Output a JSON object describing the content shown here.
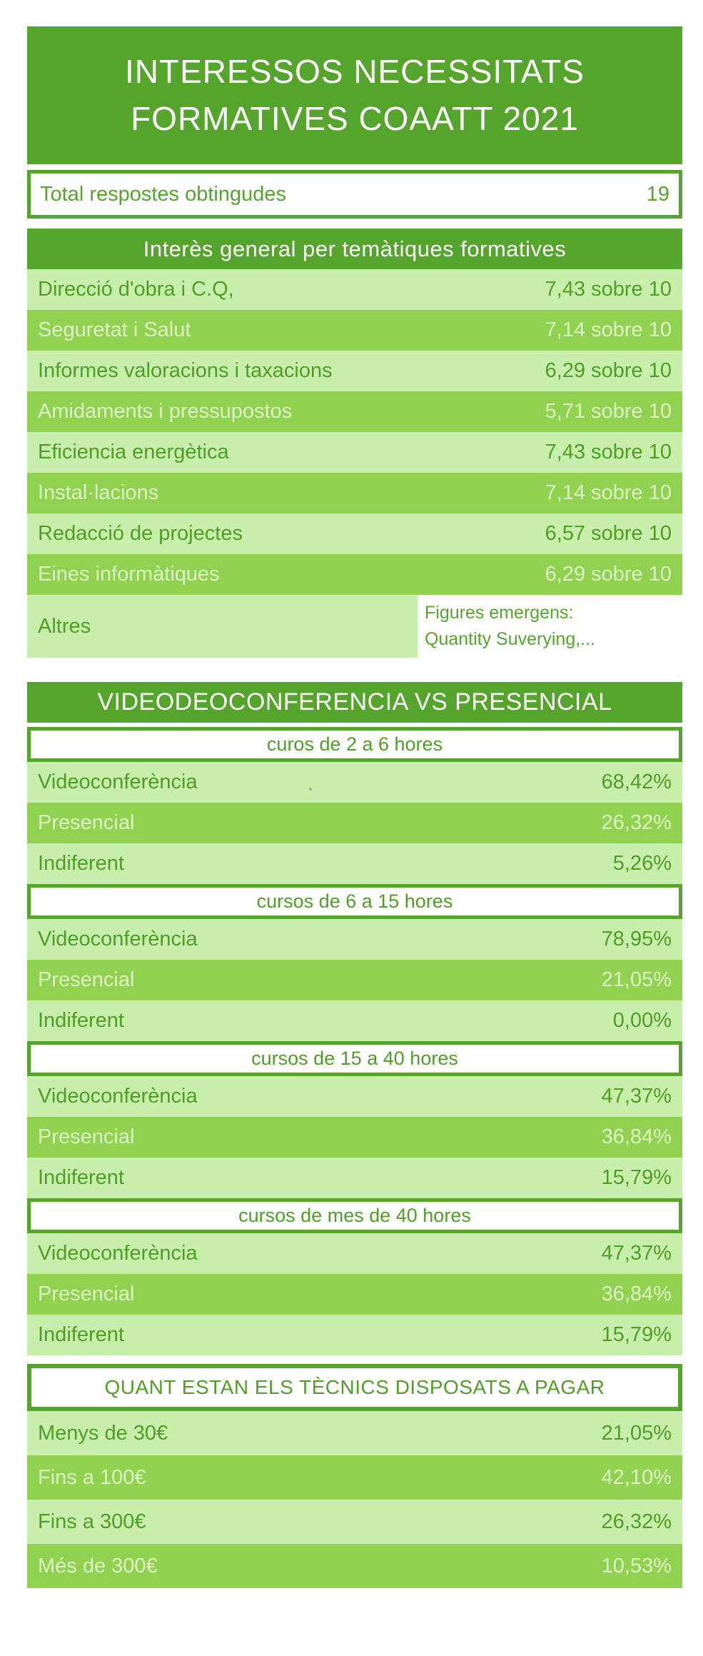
{
  "colors": {
    "accent_green": "#55A42B",
    "light_row_bg": "#C7EEAA",
    "mid_row_bg": "#90D150",
    "pale_row_text": "#DDF4C6",
    "white": "#FFFFFF"
  },
  "header": {
    "title_line1": "INTERESSOS NECESSITATS",
    "title_line2": "FORMATIVES COAATT 2021"
  },
  "total": {
    "label": "Total respostes obtingudes",
    "value": "19"
  },
  "interest": {
    "title": "Interès general per temàtiques formatives",
    "rows": [
      {
        "label": "Direcció d'obra i C.Q,",
        "value": "7,43 sobre 10"
      },
      {
        "label": "Seguretat i Salut",
        "value": "7,14 sobre 10"
      },
      {
        "label": "Informes valoracions i taxacions",
        "value": "6,29 sobre 10"
      },
      {
        "label": "Amidaments i pressupostos",
        "value": "5,71 sobre 10"
      },
      {
        "label": "Eficiencia energètica",
        "value": "7,43 sobre 10"
      },
      {
        "label": "Instal·lacions",
        "value": "7,14 sobre 10"
      },
      {
        "label": "Redacció de projectes",
        "value": "6,57 sobre 10"
      },
      {
        "label": "Eines informàtiques",
        "value": "6,29 sobre 10"
      }
    ],
    "altres": {
      "label": "Altres",
      "note_line1": "Figures emergens:",
      "note_line2": "Quantity Suverying,..."
    }
  },
  "videoconf": {
    "title": "VIDEODEOCONFERENCIA VS PRESENCIAL",
    "groups": [
      {
        "header": "curos de 2 a 6 hores",
        "rows": [
          {
            "label": "Videoconferència",
            "value": "68,42%"
          },
          {
            "label": "Presencial",
            "value": "26,32%"
          },
          {
            "label": "Indiferent",
            "value": "5,26%"
          }
        ]
      },
      {
        "header": "cursos de 6 a 15 hores",
        "rows": [
          {
            "label": "Videoconferència",
            "value": "78,95%"
          },
          {
            "label": "Presencial",
            "value": "21,05%"
          },
          {
            "label": "Indiferent",
            "value": "0,00%"
          }
        ]
      },
      {
        "header": "cursos de 15 a 40 hores",
        "rows": [
          {
            "label": "Videoconferència",
            "value": "47,37%"
          },
          {
            "label": "Presencial",
            "value": "36,84%"
          },
          {
            "label": "Indiferent",
            "value": "15,79%"
          }
        ]
      },
      {
        "header": "cursos de mes de 40 hores",
        "rows": [
          {
            "label": "Videoconferència",
            "value": "47,37%"
          },
          {
            "label": "Presencial",
            "value": "36,84%"
          },
          {
            "label": "Indiferent",
            "value": "15,79%"
          }
        ]
      }
    ]
  },
  "payment": {
    "title": "QUANT ESTAN ELS TÈCNICS DISPOSATS A PAGAR",
    "rows": [
      {
        "label": "Menys de 30€",
        "value": "21,05%"
      },
      {
        "label": "Fins a 100€",
        "value": "42,10%"
      },
      {
        "label": "Fins a 300€",
        "value": "26,32%"
      },
      {
        "label": "Més de 300€",
        "value": "10,53%"
      }
    ]
  },
  "chart_data": [
    {
      "type": "table",
      "title": "Total respostes obtingudes",
      "values": [
        19
      ]
    },
    {
      "type": "table",
      "title": "Interès general per temàtiques formatives",
      "unit": "sobre 10",
      "categories": [
        "Direcció d'obra i C.Q,",
        "Seguretat i Salut",
        "Informes valoracions i taxacions",
        "Amidaments i pressupostos",
        "Eficiencia energètica",
        "Instal·lacions",
        "Redacció de projectes",
        "Eines informàtiques",
        "Altres"
      ],
      "values": [
        7.43,
        7.14,
        6.29,
        5.71,
        7.43,
        7.14,
        6.57,
        6.29,
        null
      ],
      "annotations": {
        "Altres": "Figures emergens: Quantity Suverying,..."
      }
    },
    {
      "type": "table",
      "title": "VIDEODEOCONFERENCIA VS PRESENCIAL",
      "unit": "%",
      "categories": [
        "Videoconferència",
        "Presencial",
        "Indiferent"
      ],
      "series": [
        {
          "name": "curos de 2 a 6 hores",
          "values": [
            68.42,
            26.32,
            5.26
          ]
        },
        {
          "name": "cursos de 6 a 15 hores",
          "values": [
            78.95,
            21.05,
            0.0
          ]
        },
        {
          "name": "cursos de 15 a 40 hores",
          "values": [
            47.37,
            36.84,
            15.79
          ]
        },
        {
          "name": "cursos de mes de 40 hores",
          "values": [
            47.37,
            36.84,
            15.79
          ]
        }
      ]
    },
    {
      "type": "table",
      "title": "QUANT ESTAN ELS TÈCNICS DISPOSATS A PAGAR",
      "unit": "%",
      "categories": [
        "Menys de 30€",
        "Fins a 100€",
        "Fins a 300€",
        "Més de 300€"
      ],
      "values": [
        21.05,
        42.1,
        26.32,
        10.53
      ]
    }
  ]
}
